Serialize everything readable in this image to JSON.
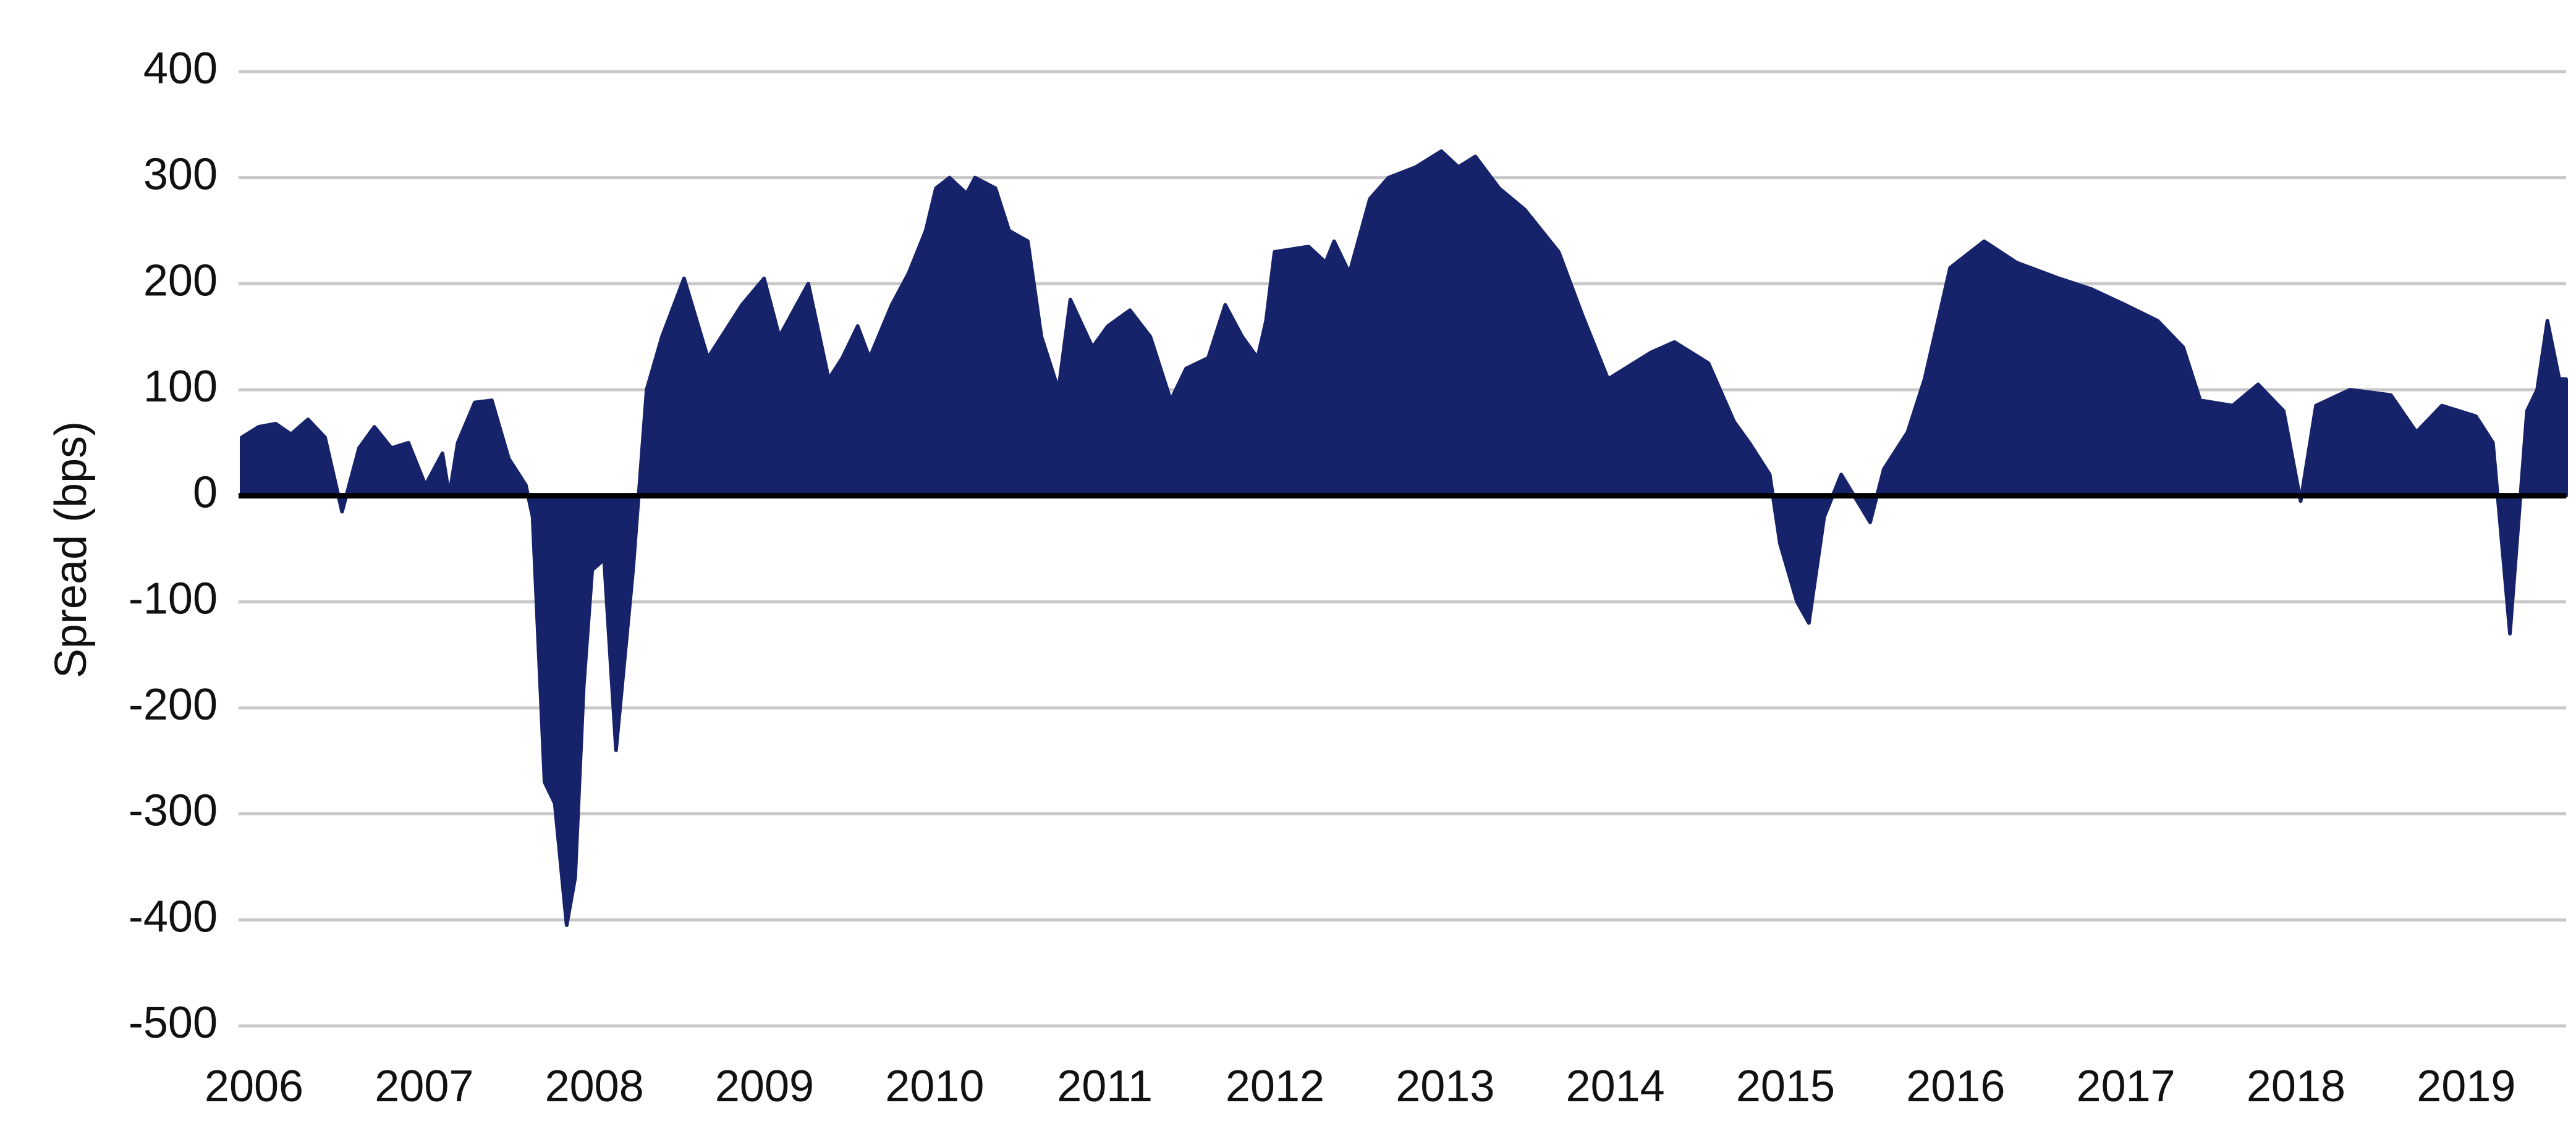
{
  "chart_data": {
    "type": "area",
    "ylabel": "Spread (bps)",
    "color": "#16226a",
    "grid": true,
    "xlim": [
      2006,
      2019.66
    ],
    "xticks": [
      2006,
      2007,
      2008,
      2009,
      2010,
      2011,
      2012,
      2013,
      2014,
      2015,
      2016,
      2017,
      2018,
      2019
    ],
    "ylim": [
      -500,
      400
    ],
    "yticks": [
      -500,
      -400,
      -300,
      -200,
      -100,
      0,
      100,
      200,
      300,
      400
    ],
    "x": [
      2006.0,
      2006.1,
      2006.2,
      2006.29,
      2006.39,
      2006.49,
      2006.59,
      2006.69,
      2006.78,
      2006.88,
      2006.98,
      2007.08,
      2007.18,
      2007.22,
      2007.27,
      2007.37,
      2007.47,
      2007.57,
      2007.67,
      2007.71,
      2007.78,
      2007.84,
      2007.91,
      2007.96,
      2008.01,
      2008.06,
      2008.13,
      2008.2,
      2008.3,
      2008.38,
      2008.47,
      2008.6,
      2008.74,
      2008.94,
      2009.07,
      2009.16,
      2009.33,
      2009.45,
      2009.53,
      2009.62,
      2009.69,
      2009.82,
      2009.92,
      2010.02,
      2010.08,
      2010.16,
      2010.26,
      2010.31,
      2010.43,
      2010.51,
      2010.62,
      2010.7,
      2010.8,
      2010.87,
      2011.0,
      2011.09,
      2011.22,
      2011.34,
      2011.46,
      2011.55,
      2011.68,
      2011.78,
      2011.88,
      2011.97,
      2012.02,
      2012.07,
      2012.27,
      2012.37,
      2012.42,
      2012.51,
      2012.63,
      2012.74,
      2012.9,
      2013.05,
      2013.15,
      2013.25,
      2013.39,
      2013.54,
      2013.74,
      2013.88,
      2014.03,
      2014.28,
      2014.42,
      2014.62,
      2014.77,
      2014.86,
      2014.98,
      2015.04,
      2015.14,
      2015.21,
      2015.3,
      2015.4,
      2015.57,
      2015.65,
      2015.79,
      2015.89,
      2016.04,
      2016.24,
      2016.43,
      2016.68,
      2016.87,
      2017.07,
      2017.26,
      2017.41,
      2017.51,
      2017.7,
      2017.85,
      2018.0,
      2018.1,
      2018.19,
      2018.39,
      2018.63,
      2018.78,
      2018.93,
      2019.13,
      2019.23,
      2019.33,
      2019.43,
      2019.49,
      2019.55,
      2019.62,
      2019.66
    ],
    "values": [
      55,
      65,
      68,
      58,
      72,
      55,
      -15,
      45,
      65,
      45,
      50,
      10,
      40,
      0,
      50,
      88,
      90,
      35,
      10,
      -20,
      -270,
      -290,
      -405,
      -360,
      -180,
      -70,
      -60,
      -240,
      -70,
      100,
      150,
      205,
      130,
      180,
      205,
      150,
      200,
      110,
      130,
      160,
      130,
      180,
      210,
      250,
      290,
      300,
      285,
      300,
      290,
      250,
      240,
      150,
      100,
      185,
      140,
      160,
      175,
      150,
      90,
      120,
      130,
      180,
      150,
      130,
      165,
      230,
      235,
      220,
      240,
      210,
      280,
      300,
      310,
      325,
      310,
      320,
      290,
      270,
      230,
      170,
      110,
      135,
      145,
      125,
      70,
      50,
      20,
      -45,
      -100,
      -120,
      -20,
      20,
      -25,
      25,
      60,
      110,
      215,
      240,
      220,
      205,
      195,
      180,
      165,
      140,
      90,
      85,
      105,
      80,
      -5,
      85,
      100,
      95,
      60,
      85,
      75,
      50,
      -130,
      80,
      100,
      165,
      110,
      110
    ]
  }
}
